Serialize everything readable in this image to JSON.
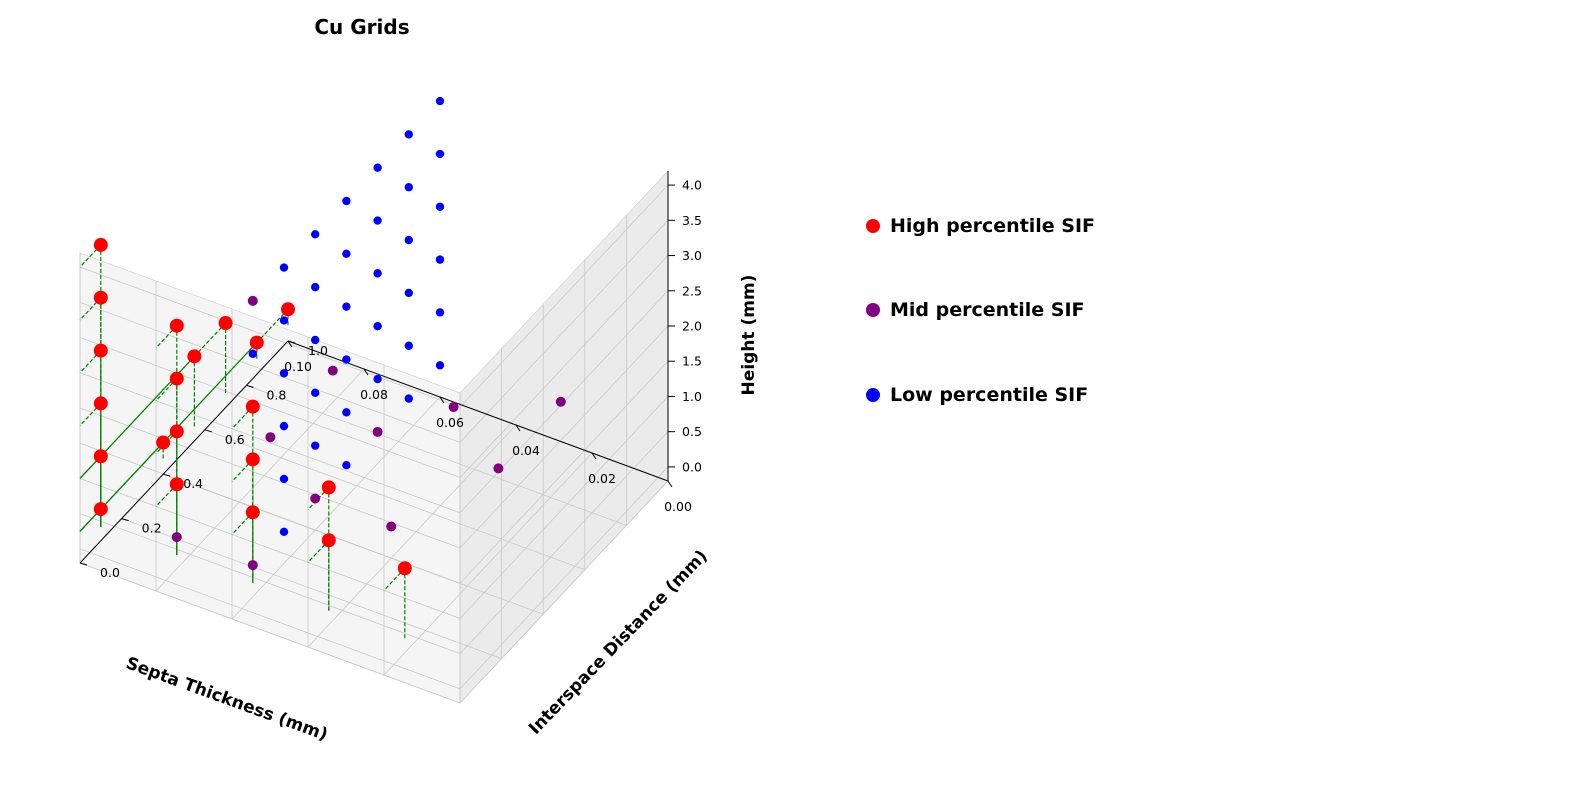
{
  "chart_data": {
    "type": "scatter3d",
    "title": "Cu Grids",
    "xlabel": "Septa Thickness (mm)",
    "ylabel": "Interspace Distance (mm)",
    "zlabel": "Height (mm)",
    "xlim": [
      0.0,
      0.1
    ],
    "ylim": [
      0.0,
      1.0
    ],
    "zlim": [
      0.0,
      4.0
    ],
    "x_ticks": [
      "0.00",
      "0.02",
      "0.04",
      "0.06",
      "0.08",
      "0.10"
    ],
    "y_ticks": [
      "0.0",
      "0.2",
      "0.4",
      "0.6",
      "0.8",
      "1.0"
    ],
    "z_ticks": [
      "0.0",
      "0.5",
      "1.0",
      "1.5",
      "2.0",
      "2.5",
      "3.0",
      "3.5",
      "4.0"
    ],
    "grid": true,
    "legend_position": "right",
    "colors": {
      "high": "#ff0000",
      "mid": "#800080",
      "low": "#0000ff",
      "projection": "#008000"
    },
    "series": [
      {
        "name": "High percentile SIF",
        "color": "#ff0000",
        "points": [
          [
            0.1,
            0.1,
            4.0
          ],
          [
            0.1,
            0.1,
            3.25
          ],
          [
            0.1,
            0.1,
            2.5
          ],
          [
            0.1,
            0.1,
            1.75
          ],
          [
            0.1,
            0.1,
            1.0
          ],
          [
            0.1,
            0.1,
            0.25
          ],
          [
            0.08,
            0.1,
            3.25
          ],
          [
            0.08,
            0.1,
            2.5
          ],
          [
            0.08,
            0.1,
            1.75
          ],
          [
            0.08,
            0.1,
            1.0
          ],
          [
            0.06,
            0.1,
            2.5
          ],
          [
            0.06,
            0.1,
            1.75
          ],
          [
            0.06,
            0.1,
            1.0
          ],
          [
            0.04,
            0.1,
            1.75
          ],
          [
            0.04,
            0.1,
            1.0
          ],
          [
            0.02,
            0.1,
            1.0
          ],
          [
            0.1,
            0.4,
            0.25
          ],
          [
            0.1,
            0.55,
            1.0
          ],
          [
            0.1,
            0.7,
            1.0
          ],
          [
            0.1,
            0.85,
            0.25
          ],
          [
            0.1,
            1.0,
            0.25
          ]
        ]
      },
      {
        "name": "Mid percentile SIF",
        "color": "#800080"
      },
      {
        "name": "Low percentile SIF",
        "color": "#0000ff"
      }
    ]
  }
}
